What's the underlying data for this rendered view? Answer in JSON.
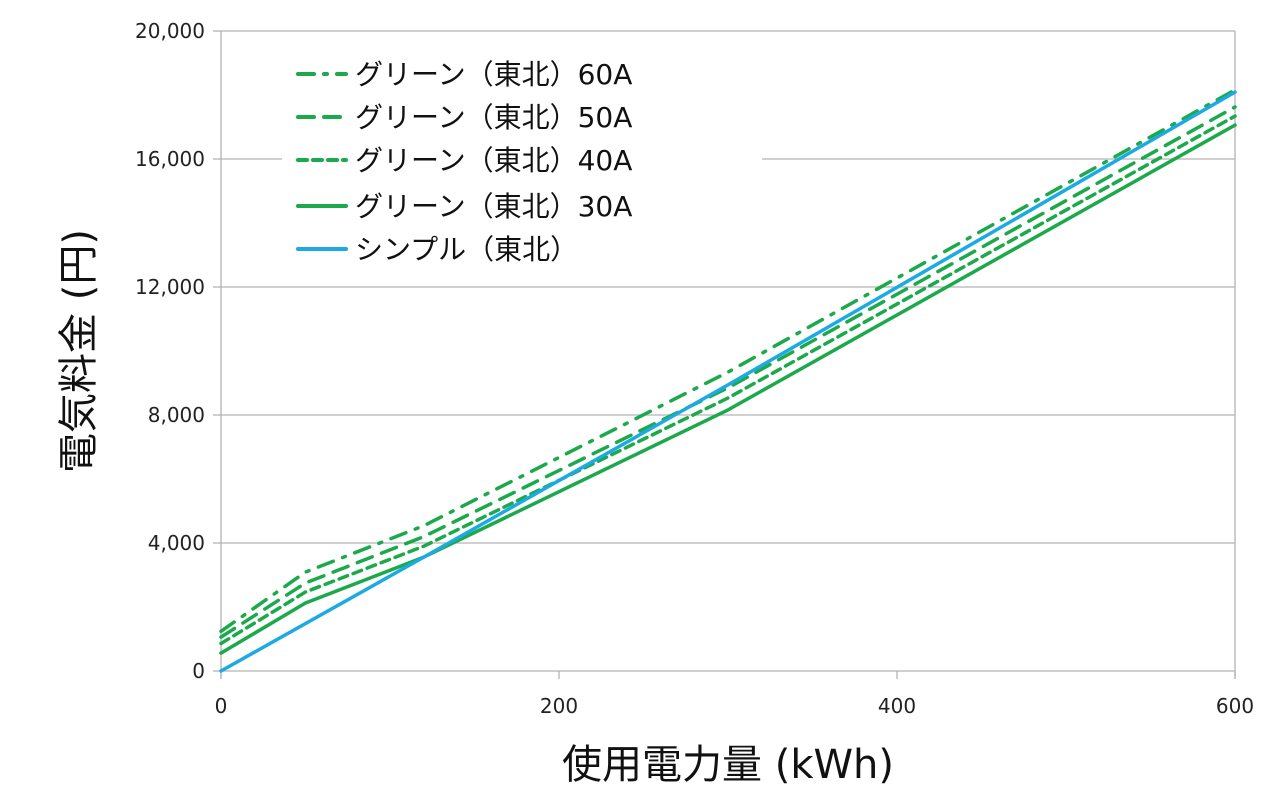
{
  "chart_data": {
    "type": "line",
    "title": "",
    "xlabel": "使用電力量 (kWh)",
    "ylabel": "電気料金 (円)",
    "xlim": [
      0,
      600
    ],
    "ylim": [
      0,
      20000
    ],
    "x_ticks": [
      0,
      200,
      400,
      600
    ],
    "x_tick_labels": [
      "0",
      "200",
      "400",
      "600"
    ],
    "y_ticks": [
      0,
      4000,
      8000,
      12000,
      16000,
      20000
    ],
    "y_tick_labels": [
      "0",
      "4,000",
      "8,000",
      "12,000",
      "16,000",
      "20,000"
    ],
    "grid": {
      "horizontal": true,
      "vertical": false
    },
    "legend_position": "upper-left inside",
    "series": [
      {
        "name": "グリーン（東北）60A",
        "color": "#1BA94C",
        "dash": "dash-dot",
        "x": [
          0,
          50,
          120,
          300,
          600
        ],
        "values": [
          1240,
          3090,
          4540,
          9340,
          18160
        ]
      },
      {
        "name": "グリーン（東北）50A",
        "color": "#1BA94C",
        "dash": "dash",
        "x": [
          0,
          50,
          120,
          300,
          600
        ],
        "values": [
          1060,
          2750,
          4200,
          8850,
          17625
        ]
      },
      {
        "name": "グリーン（東北）40A",
        "color": "#1BA94C",
        "dash": "short-dash",
        "x": [
          0,
          50,
          120,
          300,
          600
        ],
        "values": [
          860,
          2470,
          3900,
          8530,
          17340
        ]
      },
      {
        "name": "グリーン（東北）30A",
        "color": "#1BA94C",
        "dash": "solid",
        "x": [
          0,
          50,
          120,
          300,
          600
        ],
        "values": [
          560,
          2125,
          3560,
          8160,
          17060
        ]
      },
      {
        "name": "シンプル（東北）",
        "color": "#1CAAE2",
        "dash": "solid",
        "x": [
          0,
          120,
          300,
          600
        ],
        "values": [
          0,
          3560,
          8940,
          18090
        ]
      }
    ]
  },
  "legend": {
    "items": [
      {
        "label": "グリーン（東北）60A"
      },
      {
        "label": "グリーン（東北）50A"
      },
      {
        "label": "グリーン（東北）40A"
      },
      {
        "label": "グリーン（東北）30A"
      },
      {
        "label": "シンプル（東北）"
      }
    ]
  }
}
